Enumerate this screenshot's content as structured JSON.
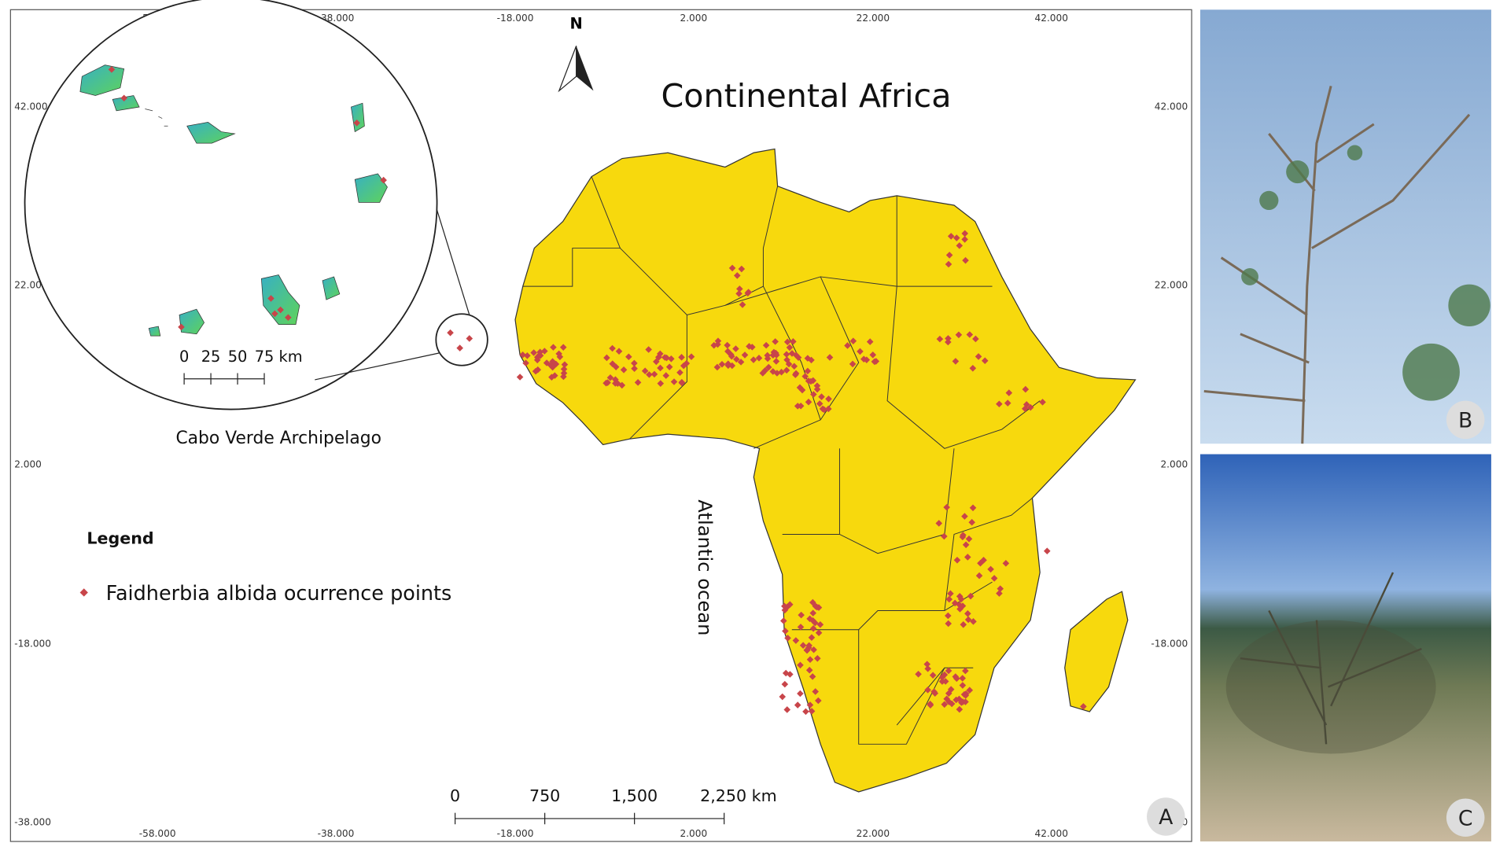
{
  "map": {
    "title": "Continental Africa",
    "north_label": "N",
    "ocean_label": "Atlantic ocean",
    "x_tick_labels": [
      "-58.000",
      "-38.000",
      "-18.000",
      "2.000",
      "22.000",
      "42.000"
    ],
    "y_tick_labels": [
      "42.000",
      "22.000",
      "2.000",
      "-18.000",
      "-38.000"
    ],
    "inset": {
      "caption": "Cabo Verde Archipelago",
      "scale_labels": [
        "0",
        "25",
        "50",
        "75 km"
      ]
    },
    "scale_labels": [
      "0",
      "750",
      "1,500",
      "2,250 km"
    ],
    "legend": {
      "title": "Legend",
      "entry": "Faidherbia albida ocurrence points"
    },
    "panel_labels": [
      "A",
      "B",
      "C"
    ]
  }
}
